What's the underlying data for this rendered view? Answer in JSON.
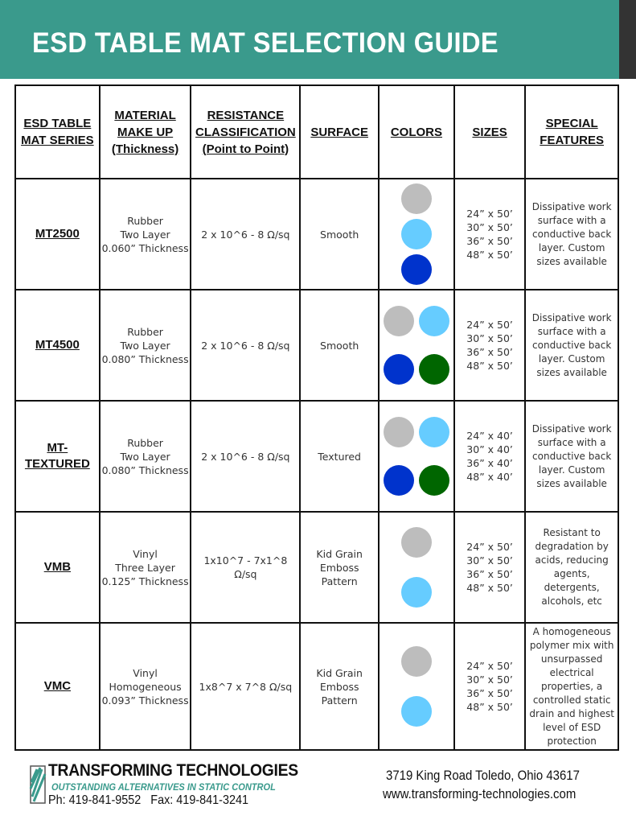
{
  "header": {
    "title": "ESD TABLE MAT SELECTION GUIDE",
    "color": "#3a9a8c"
  },
  "table": {
    "columns": [
      [
        "ESD TABLE",
        "MAT SERIES"
      ],
      [
        "MATERIAL",
        "MAKE UP",
        "(Thickness)"
      ],
      [
        "RESISTANCE",
        "CLASSIFICATION",
        "(Point to Point)"
      ],
      [
        "SURFACE"
      ],
      [
        "COLORS"
      ],
      [
        "SIZES"
      ],
      [
        "SPECIAL",
        "FEATURES"
      ]
    ],
    "rows": [
      {
        "series": [
          "MT2500"
        ],
        "material": [
          "Rubber",
          "Two Layer",
          "0.060” Thickness"
        ],
        "resistance": "2 x 10^6 - 8 Ω/sq",
        "surface": [
          "Smooth"
        ],
        "colors": [
          "#bdbdbd",
          "#66ccff",
          "#0033cc"
        ],
        "sizes": [
          "24” x 50’",
          "30” x 50’",
          "36” x 50’",
          "48” x 50’"
        ],
        "features": [
          "Dissipative work",
          "surface with a",
          "conductive back",
          "layer. Custom",
          "sizes available"
        ]
      },
      {
        "series": [
          "MT4500"
        ],
        "material": [
          "Rubber",
          "Two Layer",
          "0.080” Thickness"
        ],
        "resistance": "2 x 10^6 - 8 Ω/sq",
        "surface": [
          "Smooth"
        ],
        "colors": [
          "#bdbdbd",
          "#66ccff",
          "#0033cc",
          "#006600"
        ],
        "sizes": [
          "24” x 50’",
          "30” x 50’",
          "36” x 50’",
          "48” x 50’"
        ],
        "features": [
          "Dissipative work",
          "surface with a",
          "conductive back",
          "layer. Custom",
          "sizes available"
        ]
      },
      {
        "series": [
          "MT-",
          "TEXTURED"
        ],
        "material": [
          "Rubber",
          "Two Layer",
          "0.080” Thickness"
        ],
        "resistance": "2 x 10^6 - 8 Ω/sq",
        "surface": [
          "Textured"
        ],
        "colors": [
          "#bdbdbd",
          "#66ccff",
          "#0033cc",
          "#006600"
        ],
        "sizes": [
          "24” x 40’",
          "30” x 40’",
          "36” x 40’",
          "48” x 40’"
        ],
        "features": [
          "Dissipative work",
          "surface with a",
          "conductive back",
          "layer. Custom",
          "sizes available"
        ]
      },
      {
        "series": [
          "VMB"
        ],
        "material": [
          "Vinyl",
          "Three Layer",
          "0.125” Thickness"
        ],
        "resistance": "1x10^7 - 7x1^8 Ω/sq",
        "surface": [
          "Kid Grain",
          "Emboss",
          "Pattern"
        ],
        "colors": [
          "#bdbdbd",
          "#66ccff"
        ],
        "sizes": [
          "24” x 50’",
          "30” x 50’",
          "36” x 50’",
          "48” x 50’"
        ],
        "features": [
          "Resistant to",
          "degradation by",
          "acids, reducing",
          "agents,",
          "detergents,",
          "alcohols, etc"
        ]
      },
      {
        "series": [
          "VMC"
        ],
        "material": [
          "Vinyl",
          "Homogeneous",
          "0.093” Thickness"
        ],
        "resistance": "1x8^7 x 7^8 Ω/sq",
        "surface": [
          "Kid Grain",
          "Emboss",
          "Pattern"
        ],
        "colors": [
          "#bdbdbd",
          "#66ccff"
        ],
        "sizes": [
          "24” x 50’",
          "30” x 50’",
          "36” x 50’",
          "48” x 50’"
        ],
        "features": [
          "A homogeneous",
          "polymer mix with",
          "unsurpassed",
          "electrical",
          "properties, a",
          "controlled static",
          "drain and highest",
          "level of ESD",
          "protection"
        ]
      }
    ]
  },
  "footer": {
    "brand": "TRANSFORMING TECHNOLOGIES",
    "tagline": "OUTSTANDING ALTERNATIVES IN STATIC CONTROL",
    "phone": "Ph: 419-841-9552   Fax: 419-841-3241",
    "address": "3719 King Road Toledo, Ohio 43617",
    "website": "www.transforming-technologies.com"
  }
}
